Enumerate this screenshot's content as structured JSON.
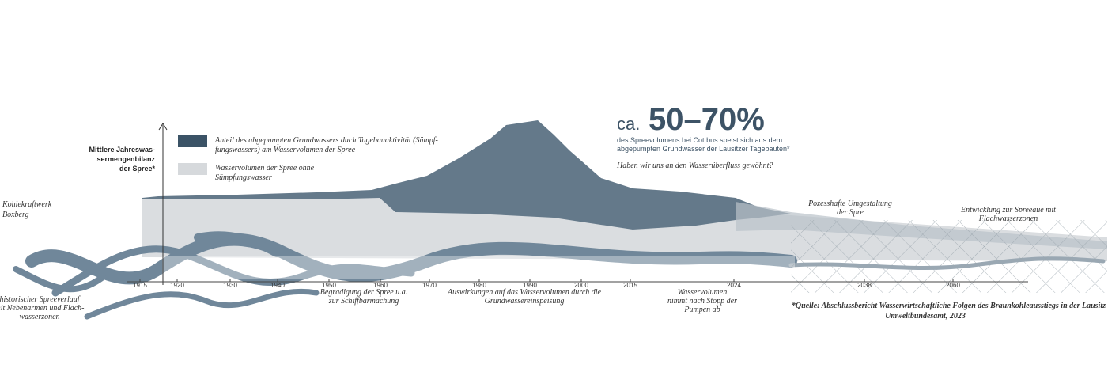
{
  "header": {
    "prefix": "ca.",
    "big": "50–70%",
    "sub": [
      "des Spreevolumens bei Cottbus speist sich aus dem",
      "abgepumpten Grundwasser der Lausitzer Tagebauten*"
    ],
    "question": "Haben wir uns an den Wasserüberfluss gewöhnt?"
  },
  "axis_label": [
    "Mittlere Jahreswas-",
    "sermengenbilanz",
    "der Spree*"
  ],
  "legend": [
    {
      "label": [
        "Anteil des abgepumpten Grundwassers duch Tagebauaktivität (Sümpf-",
        "fungswassers) am Wasservolumen der Spree"
      ]
    },
    {
      "label": [
        "Wasservolumen der Spree ohne",
        "Sümpfungswasser"
      ]
    }
  ],
  "place": [
    "Kohlekraftwerk",
    "Boxberg"
  ],
  "timeline": {
    "years": [
      1915,
      1920,
      1930,
      1940,
      1950,
      1960,
      1970,
      1980,
      1990,
      2000,
      2015,
      2024,
      2038,
      2060
    ]
  },
  "annotations": [
    {
      "lines": [
        "historischer Spreeverlauf",
        "mit Nebenarmen und Flach-",
        "wasserzonen"
      ]
    },
    {
      "lines": [
        "Begradigung der Spree u.a.",
        "zur Schiffbarmachung"
      ]
    },
    {
      "lines": [
        "Auswirkungen auf das Wasservolumen durch die",
        "Grundwassereinspeisung"
      ]
    },
    {
      "lines": [
        "Wasservolumen",
        "nimmt nach Stopp der",
        "Pumpen ab"
      ]
    },
    {
      "lines": [
        "Pozesshafte Umgestaltung",
        "der Spre"
      ]
    },
    {
      "lines": [
        "Entwicklung zur Spreeaue mit",
        "Flachwasserzonen"
      ]
    }
  ],
  "source": [
    "*Quelle: Abschlussbericht Wasserwirtschaftliche Folgen des Braunkohleausstiegs in der Lausitz",
    "Umweltbundesamt, 2023"
  ]
}
